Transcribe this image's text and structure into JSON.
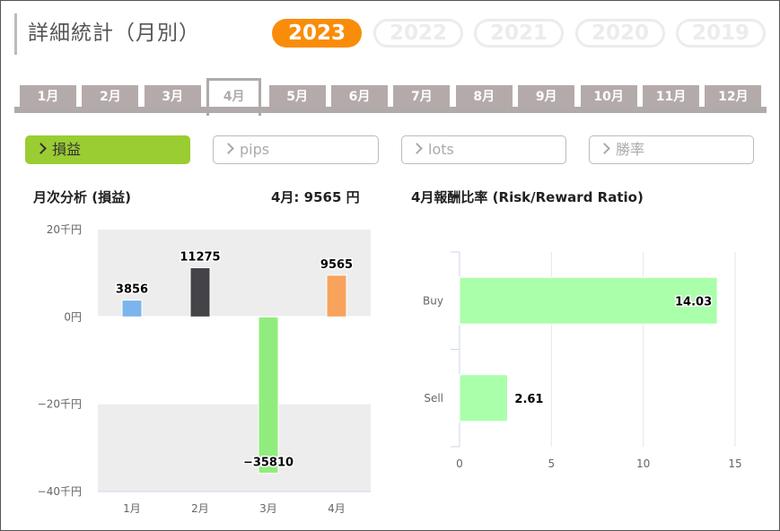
{
  "header": {
    "title": "詳細統計（月別）"
  },
  "years": [
    {
      "label": "2023",
      "active": true
    },
    {
      "label": "2022",
      "active": false
    },
    {
      "label": "2021",
      "active": false
    },
    {
      "label": "2020",
      "active": false
    },
    {
      "label": "2019",
      "active": false
    }
  ],
  "months": [
    {
      "label": "1月",
      "active": false
    },
    {
      "label": "2月",
      "active": false
    },
    {
      "label": "3月",
      "active": false
    },
    {
      "label": "4月",
      "active": true
    },
    {
      "label": "5月",
      "active": false
    },
    {
      "label": "6月",
      "active": false
    },
    {
      "label": "7月",
      "active": false
    },
    {
      "label": "8月",
      "active": false
    },
    {
      "label": "9月",
      "active": false
    },
    {
      "label": "10月",
      "active": false
    },
    {
      "label": "11月",
      "active": false
    },
    {
      "label": "12月",
      "active": false
    }
  ],
  "metric_tabs": [
    {
      "label": "損益",
      "active": true
    },
    {
      "label": "pips",
      "active": false
    },
    {
      "label": "lots",
      "active": false
    },
    {
      "label": "勝率",
      "active": false
    }
  ],
  "left_panel": {
    "title": "月次分析 (損益)",
    "summary": "4月:  9565 円"
  },
  "right_panel": {
    "title": "4月報酬比率 (Risk/Reward Ratio)"
  },
  "chart_data": [
    {
      "type": "bar",
      "title": "月次分析 (損益)",
      "categories": [
        "1月",
        "2月",
        "3月",
        "4月"
      ],
      "values": [
        3856,
        11275,
        -35810,
        9565
      ],
      "value_labels": [
        "3856",
        "11275",
        "−35810",
        "9565"
      ],
      "colors": [
        "#7cb5ec",
        "#434348",
        "#90ed7d",
        "#f7a35c"
      ],
      "ylim": [
        -40000,
        20000
      ],
      "yticks": [
        20000,
        0,
        -20000,
        -40000
      ],
      "ytick_labels": [
        "20千円",
        "0円",
        "−20千円",
        "−40千円"
      ],
      "grid": true
    },
    {
      "type": "bar",
      "orientation": "horizontal",
      "title": "4月報酬比率 (Risk/Reward Ratio)",
      "categories": [
        "Buy",
        "Sell"
      ],
      "values": [
        14.03,
        2.61
      ],
      "value_labels": [
        "14.03",
        "2.61"
      ],
      "color": "#aaffaa",
      "xlim": [
        0,
        15
      ],
      "xticks": [
        0,
        5,
        10,
        15
      ],
      "xtick_labels": [
        "0",
        "5",
        "10",
        "15"
      ],
      "grid": true
    }
  ]
}
